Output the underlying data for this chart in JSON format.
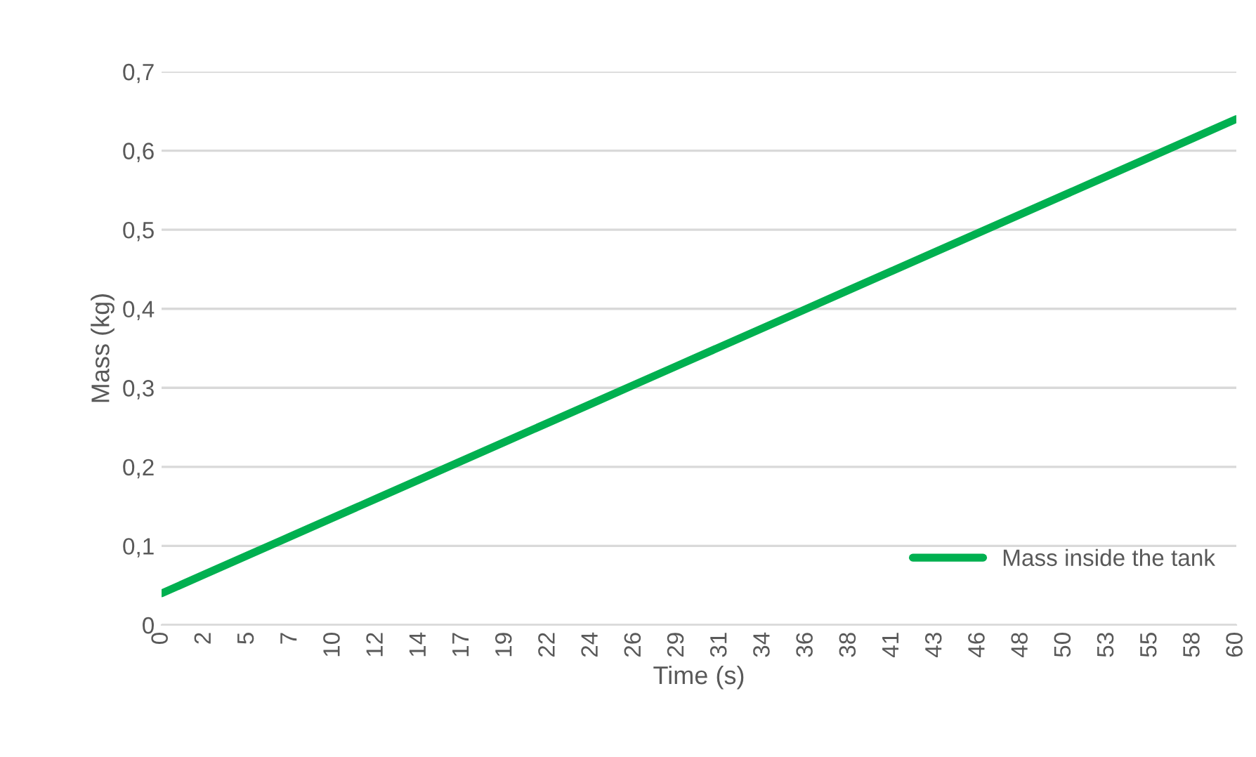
{
  "chart_data": {
    "type": "line",
    "xlabel": "Time (s)",
    "ylabel": "Mass (kg)",
    "categories": [
      "0",
      "2",
      "5",
      "7",
      "10",
      "12",
      "14",
      "17",
      "19",
      "22",
      "24",
      "26",
      "29",
      "31",
      "34",
      "36",
      "38",
      "41",
      "43",
      "46",
      "48",
      "50",
      "53",
      "55",
      "58",
      "60"
    ],
    "series": [
      {
        "name": "Mass inside the tank",
        "color": "#00b050",
        "values": [
          0.04,
          0.064,
          0.088,
          0.112,
          0.136,
          0.16,
          0.184,
          0.208,
          0.232,
          0.256,
          0.28,
          0.304,
          0.328,
          0.352,
          0.376,
          0.4,
          0.424,
          0.448,
          0.472,
          0.496,
          0.52,
          0.544,
          0.568,
          0.592,
          0.616,
          0.64
        ]
      }
    ],
    "ylim": [
      0,
      0.7
    ],
    "yticks": [
      0,
      {
        "value": 0.1,
        "label": "0,1"
      },
      {
        "value": 0.2,
        "label": "0,2"
      },
      {
        "value": 0.3,
        "label": "0,3"
      },
      {
        "value": 0.4,
        "label": "0,4"
      },
      {
        "value": 0.5,
        "label": "0,5"
      },
      {
        "value": 0.6,
        "label": "0,6"
      },
      {
        "value": 0.7,
        "label": "0,7"
      }
    ],
    "grid": "y",
    "legend": "bottom right",
    "marker": "none",
    "line_style": "solid"
  }
}
